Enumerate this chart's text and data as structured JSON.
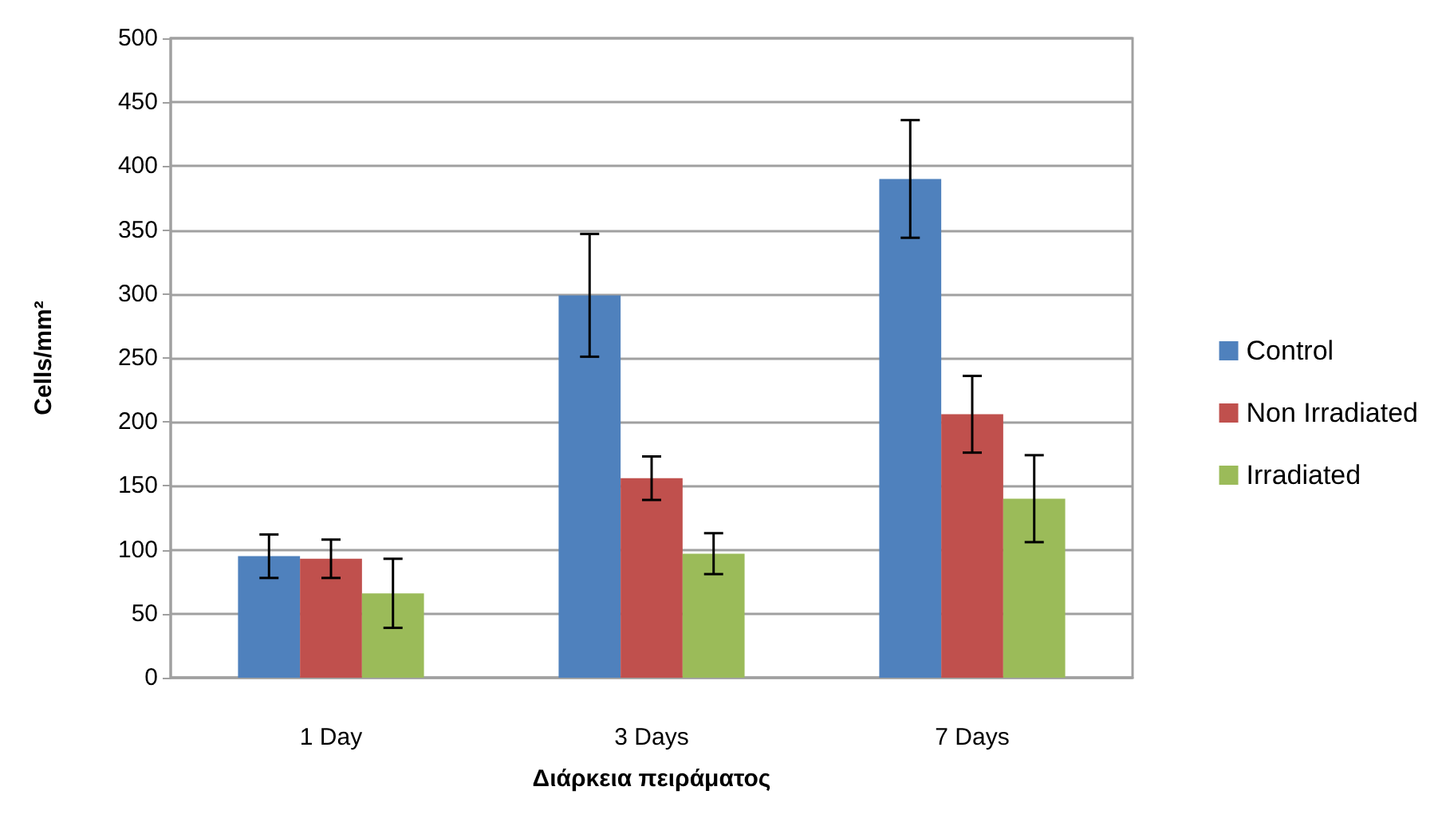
{
  "chart_data": {
    "type": "bar",
    "xlabel": "Διάρκεια πειράματος",
    "ylabel": "Cells/mm²",
    "categories": [
      "1 Day",
      "3 Days",
      "7 Days"
    ],
    "series": [
      {
        "name": "Control",
        "color": "#4f81bd",
        "values": [
          95,
          299,
          390
        ],
        "errors": [
          17,
          48,
          46
        ]
      },
      {
        "name": "Non Irradiated",
        "color": "#c0504d",
        "values": [
          93,
          156,
          206
        ],
        "errors": [
          15,
          17,
          30
        ]
      },
      {
        "name": "Irradiated",
        "color": "#9bbb59",
        "values": [
          66,
          97,
          140
        ],
        "errors": [
          27,
          16,
          34
        ]
      }
    ],
    "ylim": [
      0,
      500
    ],
    "yticks": [
      0,
      50,
      100,
      150,
      200,
      250,
      300,
      350,
      400,
      450,
      500
    ],
    "grid": "y",
    "legend": "right"
  }
}
